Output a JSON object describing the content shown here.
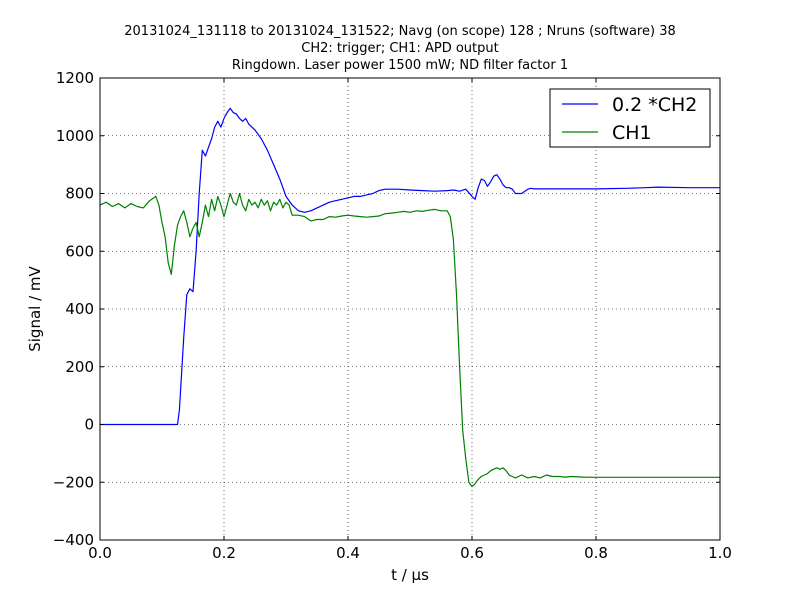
{
  "chart_data": {
    "type": "line",
    "title_lines": [
      "20131024_131118 to 20131024_131522; Navg (on scope) 128 ; Nruns (software) 38",
      "CH2: trigger; CH1: APD output",
      "Ringdown. Laser power 1500 mW; ND filter factor 1"
    ],
    "xlabel": "t / μs",
    "ylabel": "Signal / mV",
    "xlim": [
      0.0,
      1.0
    ],
    "ylim": [
      -400,
      1200
    ],
    "xticks": [
      "0.0",
      "0.2",
      "0.4",
      "0.6",
      "0.8",
      "1.0"
    ],
    "yticks": [
      "−400",
      "−200",
      "0",
      "200",
      "400",
      "600",
      "800",
      "1000",
      "1200"
    ],
    "grid": true,
    "legend_position": "top-right",
    "series": [
      {
        "name": "0.2 *CH2",
        "color": "#0000ff",
        "x": [
          0.0,
          0.05,
          0.1,
          0.125,
          0.128,
          0.135,
          0.14,
          0.145,
          0.15,
          0.155,
          0.16,
          0.165,
          0.17,
          0.175,
          0.18,
          0.185,
          0.19,
          0.195,
          0.2,
          0.205,
          0.21,
          0.215,
          0.22,
          0.225,
          0.23,
          0.235,
          0.24,
          0.25,
          0.26,
          0.27,
          0.28,
          0.29,
          0.3,
          0.31,
          0.32,
          0.33,
          0.34,
          0.35,
          0.36,
          0.37,
          0.38,
          0.39,
          0.4,
          0.41,
          0.42,
          0.43,
          0.44,
          0.45,
          0.46,
          0.47,
          0.48,
          0.5,
          0.52,
          0.54,
          0.56,
          0.57,
          0.58,
          0.59,
          0.6,
          0.605,
          0.61,
          0.615,
          0.62,
          0.625,
          0.63,
          0.635,
          0.64,
          0.645,
          0.65,
          0.655,
          0.66,
          0.665,
          0.67,
          0.68,
          0.69,
          0.695,
          0.7,
          0.72,
          0.75,
          0.8,
          0.85,
          0.88,
          0.9,
          0.95,
          1.0
        ],
        "y": [
          0,
          0,
          0,
          0,
          50,
          300,
          450,
          470,
          460,
          600,
          800,
          950,
          930,
          960,
          990,
          1030,
          1050,
          1030,
          1060,
          1080,
          1095,
          1080,
          1075,
          1060,
          1050,
          1060,
          1040,
          1020,
          990,
          950,
          900,
          850,
          790,
          760,
          740,
          735,
          740,
          750,
          760,
          770,
          775,
          780,
          785,
          790,
          790,
          795,
          800,
          810,
          815,
          815,
          815,
          812,
          810,
          808,
          810,
          812,
          808,
          815,
          790,
          780,
          820,
          850,
          845,
          825,
          840,
          860,
          865,
          850,
          830,
          820,
          820,
          815,
          800,
          800,
          815,
          818,
          816,
          816,
          816,
          816,
          818,
          820,
          822,
          820,
          820
        ]
      },
      {
        "name": "CH1",
        "color": "#008000",
        "x": [
          0.0,
          0.01,
          0.02,
          0.03,
          0.04,
          0.05,
          0.06,
          0.07,
          0.08,
          0.09,
          0.095,
          0.1,
          0.105,
          0.11,
          0.115,
          0.12,
          0.125,
          0.13,
          0.135,
          0.14,
          0.145,
          0.15,
          0.155,
          0.16,
          0.165,
          0.17,
          0.175,
          0.18,
          0.185,
          0.19,
          0.195,
          0.2,
          0.205,
          0.21,
          0.215,
          0.22,
          0.225,
          0.23,
          0.235,
          0.24,
          0.245,
          0.25,
          0.255,
          0.26,
          0.265,
          0.27,
          0.275,
          0.28,
          0.285,
          0.29,
          0.295,
          0.3,
          0.305,
          0.31,
          0.32,
          0.33,
          0.34,
          0.35,
          0.36,
          0.37,
          0.38,
          0.39,
          0.4,
          0.41,
          0.42,
          0.43,
          0.44,
          0.45,
          0.46,
          0.47,
          0.48,
          0.49,
          0.5,
          0.51,
          0.52,
          0.53,
          0.54,
          0.55,
          0.56,
          0.565,
          0.57,
          0.575,
          0.58,
          0.585,
          0.59,
          0.595,
          0.6,
          0.605,
          0.61,
          0.615,
          0.62,
          0.625,
          0.63,
          0.64,
          0.645,
          0.65,
          0.655,
          0.66,
          0.665,
          0.67,
          0.68,
          0.69,
          0.7,
          0.71,
          0.72,
          0.73,
          0.74,
          0.75,
          0.76,
          0.78,
          0.8,
          0.85,
          0.9,
          0.95,
          1.0
        ],
        "y": [
          760,
          770,
          755,
          765,
          750,
          765,
          755,
          750,
          775,
          790,
          760,
          700,
          650,
          560,
          520,
          620,
          690,
          720,
          740,
          700,
          650,
          680,
          700,
          650,
          700,
          760,
          720,
          780,
          740,
          790,
          760,
          720,
          760,
          800,
          770,
          760,
          800,
          760,
          740,
          780,
          760,
          770,
          750,
          780,
          760,
          775,
          740,
          770,
          760,
          780,
          750,
          770,
          760,
          725,
          725,
          720,
          705,
          710,
          710,
          720,
          718,
          722,
          725,
          722,
          720,
          718,
          720,
          722,
          730,
          732,
          735,
          738,
          735,
          740,
          738,
          742,
          745,
          740,
          740,
          720,
          640,
          450,
          200,
          -20,
          -120,
          -200,
          -215,
          -205,
          -190,
          -180,
          -175,
          -170,
          -160,
          -150,
          -155,
          -150,
          -160,
          -175,
          -180,
          -185,
          -175,
          -185,
          -180,
          -185,
          -175,
          -180,
          -180,
          -182,
          -180,
          -182,
          -183,
          -183,
          -183,
          -183,
          -183
        ]
      }
    ]
  }
}
